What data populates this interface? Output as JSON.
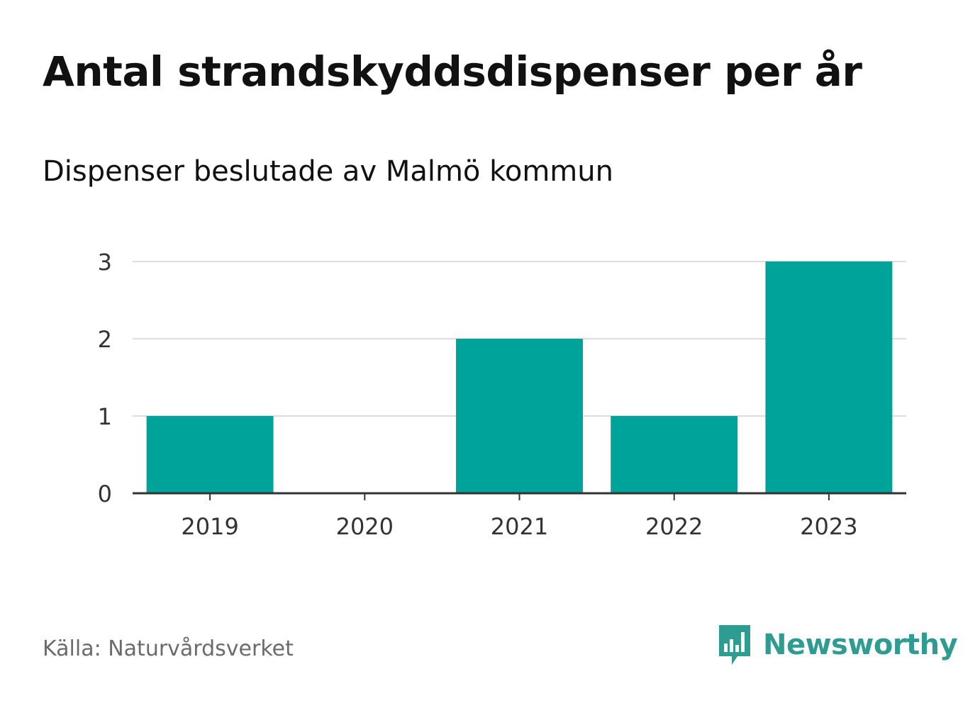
{
  "header": {
    "title": "Antal strandskyddsdispenser per år",
    "subtitle": "Dispenser beslutade av Malmö kommun"
  },
  "footer": {
    "source": "Källa: Naturvårdsverket",
    "brand": "Newsworthy",
    "brand_icon": "newsworthy-logo-icon"
  },
  "colors": {
    "bar": "#00a39a",
    "grid": "#dddddd",
    "axis": "#333333",
    "brand": "#2f9c92"
  },
  "chart_data": {
    "type": "bar",
    "title": "Antal strandskyddsdispenser per år",
    "subtitle": "Dispenser beslutade av Malmö kommun",
    "xlabel": "",
    "ylabel": "",
    "categories": [
      "2019",
      "2020",
      "2021",
      "2022",
      "2023"
    ],
    "values": [
      1,
      0,
      2,
      1,
      3
    ],
    "ylim": [
      0,
      3
    ],
    "yticks": [
      0,
      1,
      2,
      3
    ],
    "grid": true,
    "legend": "none"
  }
}
